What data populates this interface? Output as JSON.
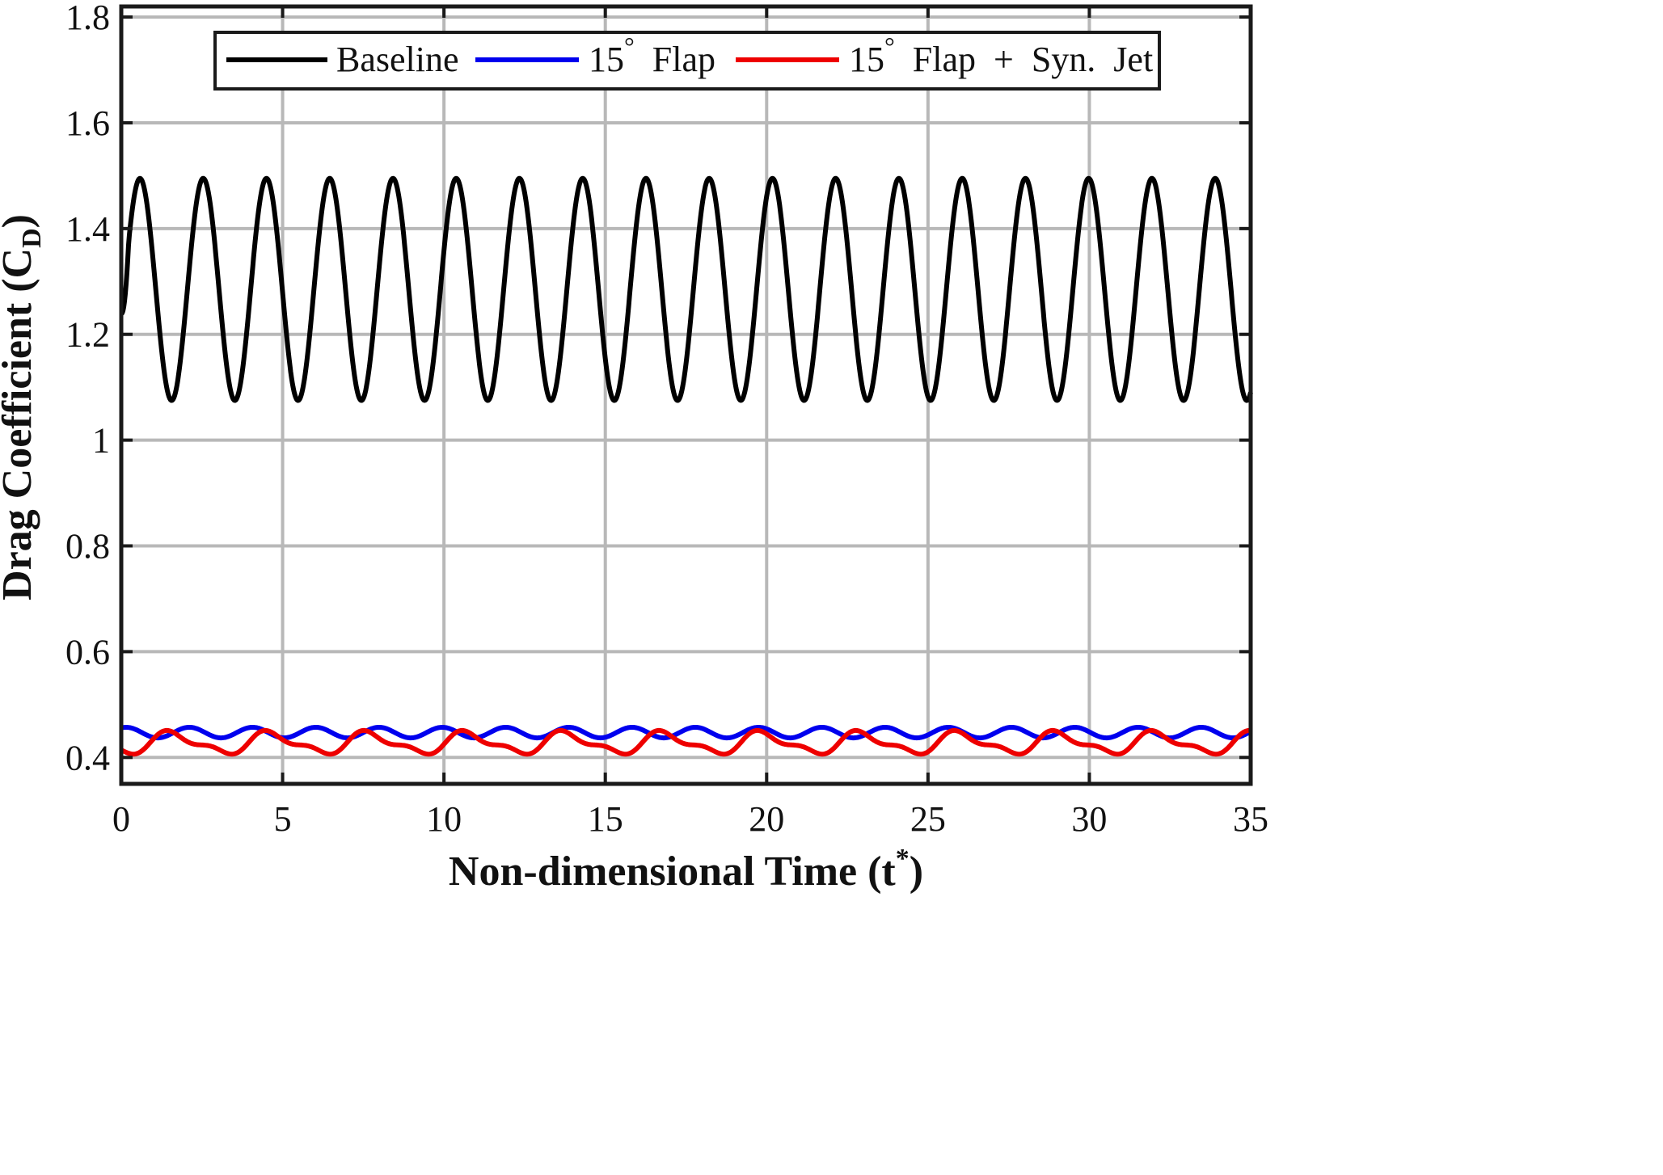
{
  "chart_data": {
    "type": "line",
    "title": "",
    "xlabel": "Non-dimensional  Time  (t",
    "xlabel_sup": "*",
    "xlabel_tail": ")",
    "ylabel": "Drag  Coefficient  (C",
    "ylabel_sub": "D",
    "ylabel_tail": ")",
    "xlim": [
      0,
      35
    ],
    "ylim": [
      0.35,
      1.82
    ],
    "xticks": [
      "0",
      "5",
      "10",
      "15",
      "20",
      "25",
      "30",
      "35"
    ],
    "yticks": [
      "0.4",
      "0.6",
      "0.8",
      "1",
      "1.2",
      "1.4",
      "1.6",
      "1.8"
    ],
    "grid": true,
    "legend_position": "top",
    "legend": [
      {
        "label": "Baseline",
        "color": "#000000"
      },
      {
        "label": "15",
        "label_sup": "°",
        "label_tail": "  Flap",
        "color": "#0000ee"
      },
      {
        "label": "15",
        "label_sup": "°",
        "label_tail": "  Flap  +  Syn.  Jet",
        "color": "#ee0000"
      }
    ],
    "series": [
      {
        "name": "Baseline",
        "color": "#000000",
        "model": {
          "mean": 1.285,
          "amplitude": 0.21,
          "period": 1.96,
          "phase_t": 0.58,
          "start_value": 1.24
        }
      },
      {
        "name": "15° Flap",
        "color": "#0000ee",
        "model": {
          "mean": 0.447,
          "amplitude": 0.01,
          "period": 1.96,
          "phase_t": 0.15
        }
      },
      {
        "name": "15° Flap + Syn. Jet",
        "color": "#ee0000",
        "model": {
          "mean": 0.427,
          "amplitude": 0.018,
          "period": 3.05,
          "phase_t": 1.6,
          "harmonic_amplitude": 0.008
        }
      }
    ]
  }
}
